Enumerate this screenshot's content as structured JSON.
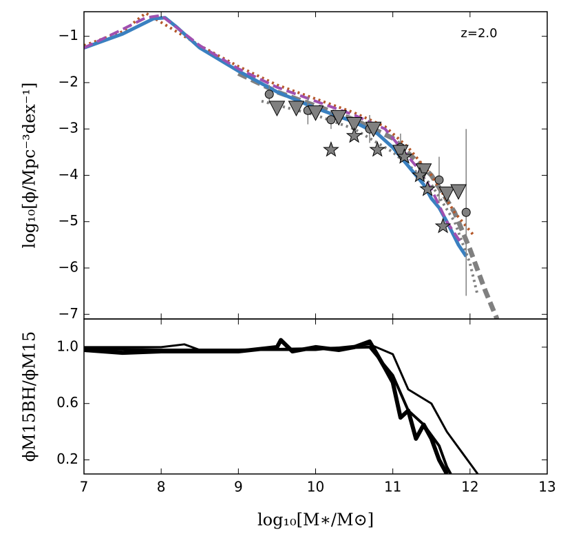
{
  "chart_data": [
    {
      "type": "line",
      "annotation": "z=2.0",
      "ylabel": "log₁₀[ϕ/Mpc⁻³dex⁻¹]",
      "xlim": [
        7,
        13
      ],
      "xticks": [
        7,
        8,
        9,
        10,
        11,
        12,
        13
      ],
      "ylim": [
        -7.1,
        -0.47
      ],
      "yticks": [
        {
          "value": -1,
          "label": "−1"
        },
        {
          "value": -2,
          "label": "−2"
        },
        {
          "value": -3,
          "label": "−3"
        },
        {
          "value": -4,
          "label": "−4"
        },
        {
          "value": -5,
          "label": "−5"
        },
        {
          "value": -6,
          "label": "−6"
        },
        {
          "value": -7,
          "label": "−7"
        }
      ],
      "series": [
        {
          "style": "dashed",
          "color": "#808080",
          "width": 7,
          "x": [
            9.0,
            9.5,
            10.0,
            10.5,
            11.0,
            11.5,
            11.8,
            12.0,
            12.2,
            12.35
          ],
          "values": [
            -1.8,
            -2.2,
            -2.5,
            -2.8,
            -3.2,
            -4.0,
            -4.8,
            -5.6,
            -6.5,
            -7.1
          ]
        },
        {
          "style": "dotted",
          "color": "#808080",
          "width": 4,
          "x": [
            9.3,
            10.0,
            10.5,
            11.0,
            11.5,
            11.8,
            12.0,
            12.1
          ],
          "values": [
            -2.4,
            -2.7,
            -3.0,
            -3.5,
            -4.2,
            -5.0,
            -5.9,
            -6.6
          ]
        },
        {
          "style": "dotted",
          "color": "#b5582a",
          "width": 4,
          "x": [
            7.0,
            7.5,
            7.8,
            8.5,
            9.0,
            9.5,
            10.0,
            10.5,
            10.9,
            11.2,
            11.5,
            11.8,
            12.05
          ],
          "values": [
            -1.2,
            -0.9,
            -0.5,
            -1.2,
            -1.65,
            -2.05,
            -2.35,
            -2.65,
            -2.95,
            -3.4,
            -4.0,
            -4.8,
            -5.3
          ]
        },
        {
          "style": "solid",
          "color": "#3a80c0",
          "width": 5,
          "x": [
            7.0,
            7.5,
            7.9,
            8.05,
            8.2,
            8.5,
            9.0,
            9.5,
            10.0,
            10.5,
            10.8,
            11.0,
            11.2,
            11.4,
            11.5,
            11.6,
            11.7,
            11.85,
            11.95
          ],
          "values": [
            -1.25,
            -0.95,
            -0.62,
            -0.6,
            -0.8,
            -1.25,
            -1.75,
            -2.2,
            -2.55,
            -2.85,
            -3.1,
            -3.4,
            -3.8,
            -4.2,
            -4.5,
            -4.7,
            -5.0,
            -5.5,
            -5.75
          ]
        },
        {
          "style": "dashed",
          "color": "#a050b0",
          "width": 4,
          "x": [
            7.0,
            7.5,
            7.8,
            8.0,
            8.5,
            9.0,
            9.5,
            10.0,
            10.5,
            10.9,
            11.1,
            11.3,
            11.5,
            11.7,
            11.9
          ],
          "values": [
            -1.25,
            -0.85,
            -0.6,
            -0.55,
            -1.2,
            -1.7,
            -2.1,
            -2.4,
            -2.7,
            -3.0,
            -3.4,
            -3.8,
            -4.3,
            -5.0,
            -5.5
          ]
        },
        {
          "marker": "circle",
          "color": "#808080",
          "x": [
            9.4,
            9.9,
            10.2,
            10.7,
            11.1,
            11.6,
            11.95
          ],
          "values": [
            -2.25,
            -2.6,
            -2.8,
            -3.0,
            -3.4,
            -4.1,
            -4.8
          ],
          "errors": [
            0.2,
            0.3,
            0.2,
            0.3,
            0.3,
            0.5,
            1.8
          ]
        },
        {
          "marker": "triangle",
          "color": "#808080",
          "x": [
            9.5,
            9.75,
            10.0,
            10.3,
            10.5,
            10.75,
            11.1,
            11.4,
            11.7,
            11.85
          ],
          "values": [
            -2.55,
            -2.55,
            -2.65,
            -2.75,
            -2.9,
            -3.0,
            -3.5,
            -3.9,
            -4.4,
            -4.35
          ]
        },
        {
          "marker": "star",
          "color": "#808080",
          "x": [
            10.2,
            10.5,
            10.8,
            11.15,
            11.35,
            11.45,
            11.65
          ],
          "values": [
            -3.45,
            -3.15,
            -3.45,
            -3.6,
            -4.0,
            -4.3,
            -5.1
          ]
        }
      ]
    },
    {
      "type": "line",
      "ylabel": "ϕM15BH/ϕM15",
      "xlabel": "log₁₀[M∗/M⊙]",
      "xlim": [
        7,
        13
      ],
      "xticks": [
        7,
        8,
        9,
        10,
        11,
        12,
        13
      ],
      "ylim": [
        0.1,
        1.2
      ],
      "yticks": [
        0.2,
        0.6,
        {
          "value": 1,
          "label": "1.0"
        }
      ],
      "series": [
        {
          "style": "solid",
          "color": "#000000",
          "width": 6,
          "x": [
            7.0,
            7.5,
            8.0,
            8.5,
            9.0,
            9.5,
            9.55,
            9.7,
            10.0,
            10.3,
            10.5,
            10.7,
            10.9,
            11.0,
            11.1,
            11.2,
            11.3,
            11.4,
            11.5,
            11.6,
            11.7
          ],
          "values": [
            0.98,
            0.96,
            0.97,
            0.97,
            0.97,
            1.0,
            1.05,
            0.97,
            1.0,
            0.98,
            1.0,
            1.04,
            0.85,
            0.75,
            0.5,
            0.55,
            0.35,
            0.45,
            0.35,
            0.2,
            0.1
          ]
        },
        {
          "style": "solid",
          "color": "#000000",
          "width": 3,
          "x": [
            7.0,
            8.0,
            8.3,
            8.5,
            9.0,
            10.0,
            10.7,
            11.0,
            11.2,
            11.5,
            11.7,
            11.9,
            12.1
          ],
          "values": [
            1.0,
            1.0,
            1.02,
            0.98,
            0.98,
            0.98,
            1.02,
            0.95,
            0.7,
            0.6,
            0.4,
            0.25,
            0.1
          ]
        },
        {
          "style": "solid",
          "color": "#000000",
          "width": 4,
          "x": [
            7.0,
            8.0,
            9.0,
            10.0,
            10.7,
            11.0,
            11.2,
            11.4,
            11.6,
            11.7,
            11.75
          ],
          "values": [
            0.99,
            0.98,
            0.98,
            0.99,
            1.0,
            0.8,
            0.55,
            0.45,
            0.3,
            0.15,
            0.1
          ]
        }
      ]
    }
  ]
}
